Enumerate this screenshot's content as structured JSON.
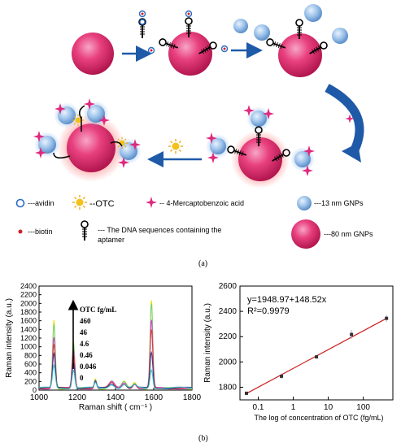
{
  "scheme": {
    "legend": {
      "avidin": "---avidin",
      "otc": "--OTC",
      "mba": "-- 4-Mercaptobenzoic acid",
      "gnp13": "---13 nm GNPs",
      "biotin": "---biotin",
      "dna_line1": "--- The DNA sequences  containing the",
      "dna_line2": "aptamer",
      "gnp80": "---80 nm  GNPs"
    },
    "caption_a": "(a)",
    "colors": {
      "gnp80": "#e8407e",
      "gnp13": "#8fb8e6",
      "avidin": "#2b6cc4",
      "biotin": "#d0202a",
      "mba": "#e0287d",
      "otc": "#f2c21b",
      "arrow": "#1f5aa8"
    }
  },
  "caption_b": "(b)",
  "chart_data": [
    {
      "type": "line",
      "xlabel": "Raman shift ( cm⁻¹ )",
      "ylabel": "Raman intensity (a.u.)",
      "xlim": [
        1000,
        1800
      ],
      "ylim": [
        0,
        2400
      ],
      "xticks": [
        "1000",
        "1200",
        "1400",
        "1600",
        "1800"
      ],
      "yticks": [
        "0",
        "200",
        "400",
        "600",
        "800",
        "1000",
        "1200",
        "1400",
        "1600",
        "1800",
        "2000",
        "2200",
        "2400"
      ],
      "annotation_title": "OTC  fg/mL",
      "legend_labels": [
        "460",
        "46",
        "4.6",
        "0.46",
        "0.046",
        "0"
      ],
      "series": [
        {
          "label": "460",
          "color": "#e4e400",
          "peaks": [
            1590,
            1075,
            230,
            170,
            150,
            130,
            2050
          ]
        },
        {
          "label": "46",
          "color": "#6fd07a",
          "peaks": [
            1500,
            1020,
            215,
            160,
            140,
            120,
            1950
          ]
        },
        {
          "label": "4.6",
          "color": "#d63bd6",
          "peaks": [
            1180,
            880,
            190,
            140,
            125,
            105,
            1560
          ]
        },
        {
          "label": "0.46",
          "color": "#e03a3a",
          "peaks": [
            1000,
            760,
            165,
            125,
            110,
            95,
            1330
          ]
        },
        {
          "label": "0.046",
          "color": "#1f3f8f",
          "peaks": [
            780,
            600,
            140,
            105,
            95,
            80,
            820
          ]
        },
        {
          "label": "0",
          "color": "#3fbcc2",
          "peaks": [
            520,
            420,
            110,
            85,
            75,
            65,
            430
          ]
        }
      ],
      "peak_positions": [
        1078,
        1180,
        1295,
        1380,
        1445,
        1500,
        1588
      ]
    },
    {
      "type": "scatter",
      "xlabel": "The log of  concentration of OTC  (fg/mL)",
      "ylabel": "Raman intensity (a.u.)",
      "xscale": "log",
      "xlim": [
        0.03,
        700
      ],
      "ylim": [
        1700,
        2600
      ],
      "xticks": [
        "0.1",
        "1",
        "10",
        "100"
      ],
      "yticks": [
        "1800",
        "2000",
        "2200",
        "2400",
        "2600"
      ],
      "equation": "y=1948.97+148.52x",
      "r_squared": "R²=0.9979",
      "points": [
        {
          "x": 0.046,
          "y": 1752,
          "err": 12
        },
        {
          "x": 0.46,
          "y": 1887,
          "err": 22
        },
        {
          "x": 4.6,
          "y": 2040,
          "err": 10
        },
        {
          "x": 46,
          "y": 2217,
          "err": 35
        },
        {
          "x": 460,
          "y": 2345,
          "err": 28
        }
      ],
      "fit": {
        "intercept": 1948.97,
        "slope": 148.52
      },
      "colors": {
        "points": "#333333",
        "fit": "#cc1f1f",
        "error": "#9fb6d9"
      }
    }
  ]
}
